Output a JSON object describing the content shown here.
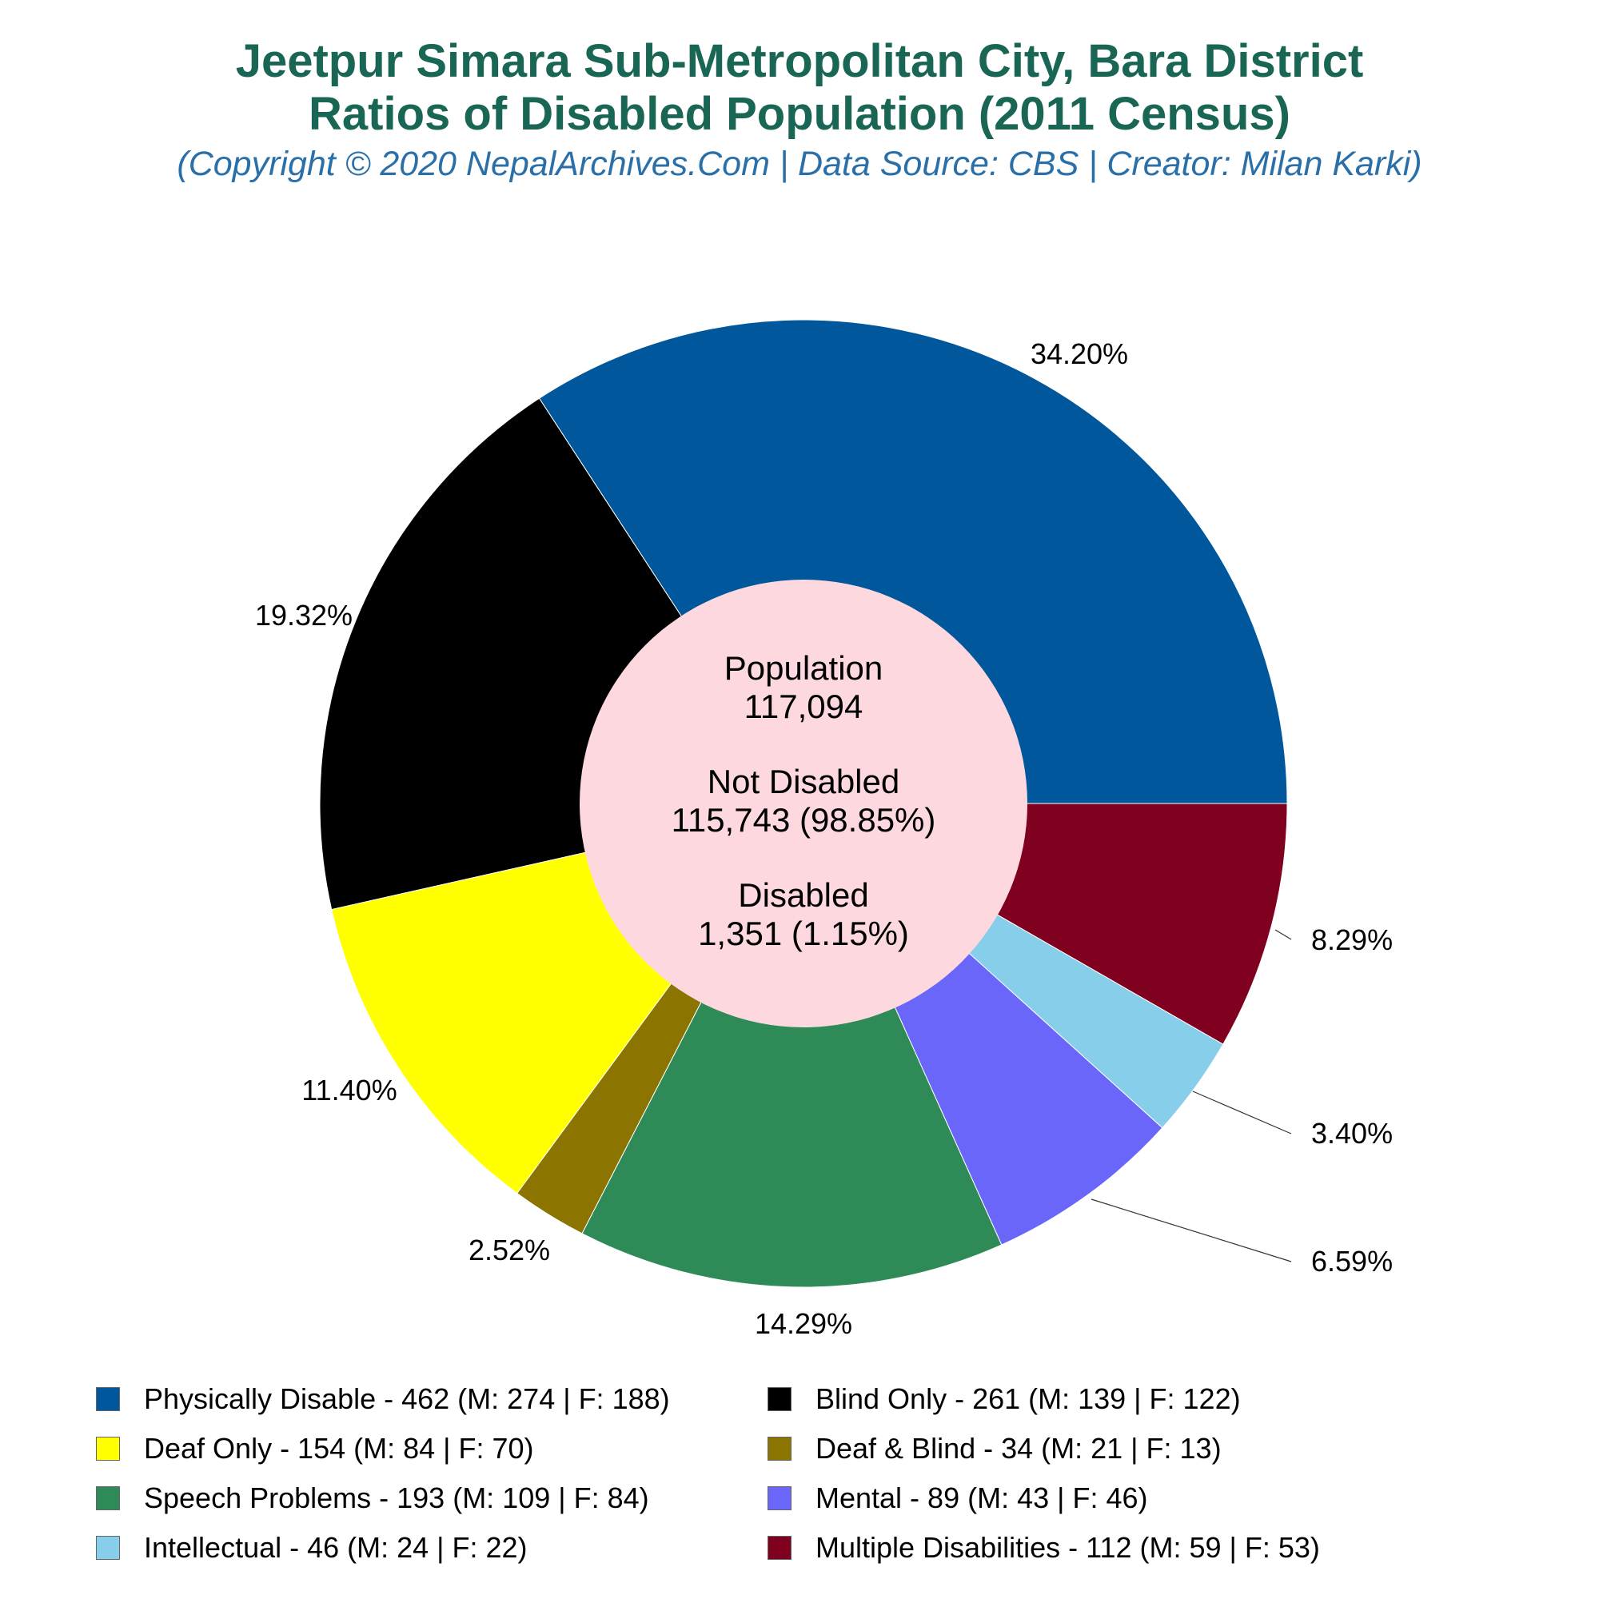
{
  "title_line1": "Jeetpur Simara Sub-Metropolitan City, Bara District",
  "title_line2": "Ratios of Disabled Population (2011 Census)",
  "subtitle": "(Copyright © 2020 NepalArchives.Com | Data Source: CBS | Creator: Milan Karki)",
  "center": {
    "population_label": "Population",
    "population_value": "117,094",
    "not_disabled_label": "Not Disabled",
    "not_disabled_value": "115,743 (98.85%)",
    "disabled_label": "Disabled",
    "disabled_value": "1,351 (1.15%)"
  },
  "chart_data": {
    "type": "pie",
    "slices": [
      {
        "name": "Physically Disable",
        "value": 462,
        "percent_label": "34.20%",
        "color": "#01579b",
        "legend": "Physically Disable - 462 (M: 274 | F: 188)"
      },
      {
        "name": "Blind Only",
        "value": 261,
        "percent_label": "19.32%",
        "color": "#000000",
        "legend": "Blind Only - 261 (M: 139 | F: 122)"
      },
      {
        "name": "Deaf Only",
        "value": 154,
        "percent_label": "11.40%",
        "color": "#ffff00",
        "legend": "Deaf Only - 154 (M: 84 | F: 70)"
      },
      {
        "name": "Deaf & Blind",
        "value": 34,
        "percent_label": "2.52%",
        "color": "#8b7500",
        "legend": "Deaf & Blind - 34 (M: 21 | F: 13)"
      },
      {
        "name": "Speech Problems",
        "value": 193,
        "percent_label": "14.29%",
        "color": "#2e8b57",
        "legend": "Speech Problems - 193 (M: 109 | F: 84)"
      },
      {
        "name": "Mental",
        "value": 89,
        "percent_label": "6.59%",
        "color": "#6a66fa",
        "legend": "Mental - 89 (M: 43 | F: 46)"
      },
      {
        "name": "Intellectual",
        "value": 46,
        "percent_label": "3.40%",
        "color": "#87ceeb",
        "legend": "Intellectual - 46 (M: 24 | F: 22)"
      },
      {
        "name": "Multiple Disabilities",
        "value": 112,
        "percent_label": "8.29%",
        "color": "#800020",
        "legend": "Multiple Disabilities - 112 (M: 59 | F: 53)"
      }
    ],
    "center_color": "#fdd8df",
    "legend_placement": "bottom"
  }
}
